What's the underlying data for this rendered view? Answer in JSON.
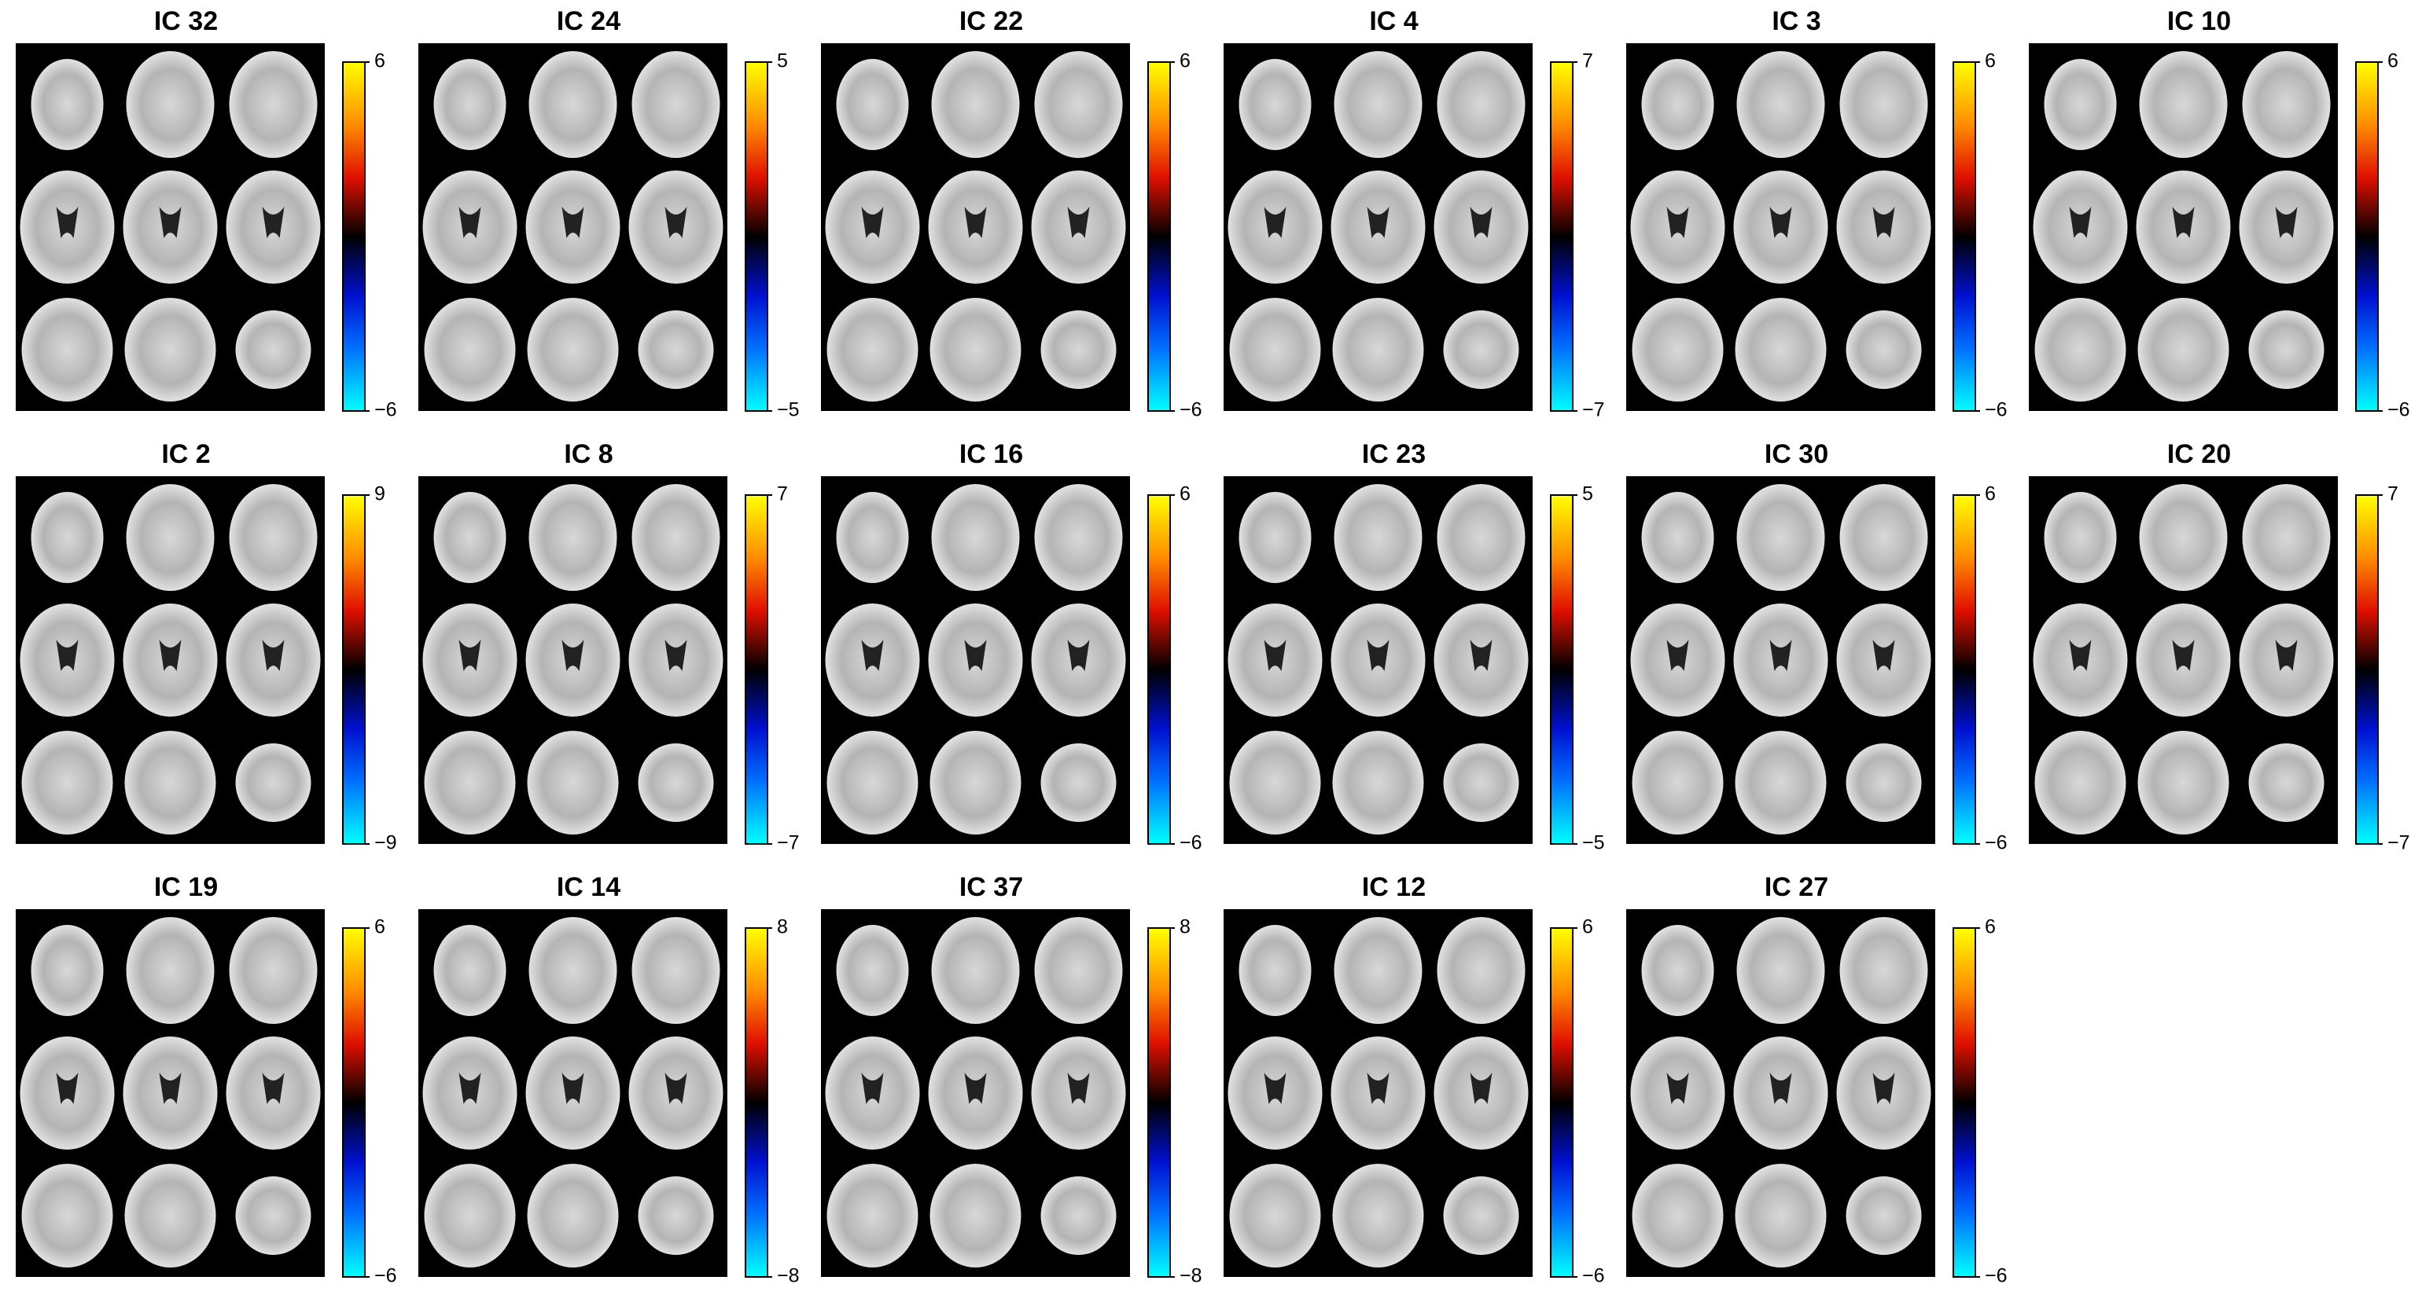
{
  "panels": [
    {
      "title": "IC 32",
      "colorbar_ticks": [
        6,
        {
          "value": -6,
          "label": "−6"
        }
      ]
    },
    {
      "title": "IC 24",
      "colorbar_ticks": [
        5,
        {
          "value": -5,
          "label": "−5"
        }
      ]
    },
    {
      "title": "IC 22",
      "colorbar_ticks": [
        6,
        {
          "value": -6,
          "label": "−6"
        }
      ]
    },
    {
      "title": "IC 4",
      "colorbar_ticks": [
        7,
        {
          "value": -7,
          "label": "−7"
        }
      ]
    },
    {
      "title": "IC 3",
      "colorbar_ticks": [
        6,
        {
          "value": -6,
          "label": "−6"
        }
      ]
    },
    {
      "title": "IC 10",
      "colorbar_ticks": [
        6,
        {
          "value": -6,
          "label": "−6"
        }
      ]
    },
    {
      "title": "IC 2",
      "colorbar_ticks": [
        9,
        {
          "value": -9,
          "label": "−9"
        }
      ]
    },
    {
      "title": "IC 8",
      "colorbar_ticks": [
        7,
        {
          "value": -7,
          "label": "−7"
        }
      ]
    },
    {
      "title": "IC 16",
      "colorbar_ticks": [
        6,
        {
          "value": -6,
          "label": "−6"
        }
      ]
    },
    {
      "title": "IC 23",
      "colorbar_ticks": [
        5,
        {
          "value": -5,
          "label": "−5"
        }
      ]
    },
    {
      "title": "IC 30",
      "colorbar_ticks": [
        6,
        {
          "value": -6,
          "label": "−6"
        }
      ]
    },
    {
      "title": "IC 20",
      "colorbar_ticks": [
        7,
        {
          "value": -7,
          "label": "−7"
        }
      ]
    },
    {
      "title": "IC 19",
      "colorbar_ticks": [
        6,
        {
          "value": -6,
          "label": "−6"
        }
      ]
    },
    {
      "title": "IC 14",
      "colorbar_ticks": [
        8,
        {
          "value": -8,
          "label": "−8"
        }
      ]
    },
    {
      "title": "IC 37",
      "colorbar_ticks": [
        8,
        {
          "value": -8,
          "label": "−8"
        }
      ]
    },
    {
      "title": "IC 12",
      "colorbar_ticks": [
        6,
        {
          "value": -6,
          "label": "−6"
        }
      ]
    },
    {
      "title": "IC 27",
      "colorbar_ticks": [
        6,
        {
          "value": -6,
          "label": "−6"
        }
      ]
    }
  ]
}
